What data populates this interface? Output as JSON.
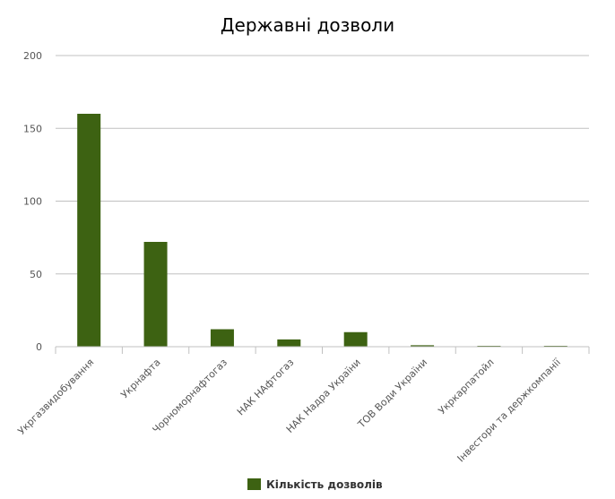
{
  "chart_data": {
    "type": "bar",
    "title": "Державні дозволи",
    "xlabel": "",
    "ylabel": "",
    "categories": [
      "Укргазвидобування",
      "Укрнафта",
      "Чорноморнафтогаз",
      "НАК НАфтогаз",
      "НАК Надра України",
      "ТОВ Води України",
      "Укркарпатойл",
      "Інвестори та держкомпанії"
    ],
    "series": [
      {
        "name": "Кількість дозволів",
        "color": "#3d6212",
        "values": [
          160,
          72,
          12,
          5,
          10,
          1,
          0.5,
          0.5
        ]
      }
    ],
    "ylim": [
      0,
      200
    ],
    "yticks": [
      0,
      50,
      100,
      150,
      200
    ],
    "grid": true,
    "legend_position": "bottom-center"
  },
  "colors": {
    "bar": "#3d6212",
    "grid": "#c0c0c0",
    "axis_text": "#555555",
    "title_text": "#000000"
  }
}
